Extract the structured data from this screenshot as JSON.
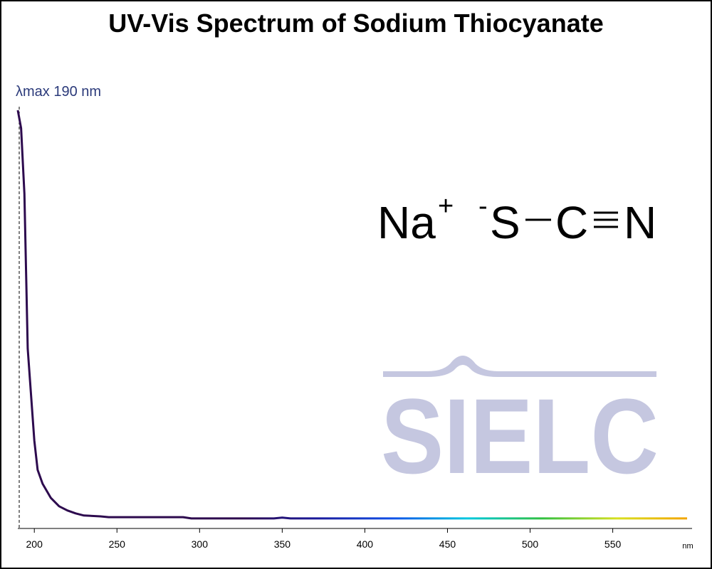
{
  "chart_data": {
    "type": "line",
    "title": "UV-Vis Spectrum of Sodium Thiocyanate",
    "x_label": "nm",
    "x": [
      190,
      192,
      194,
      196,
      200,
      202,
      205,
      210,
      215,
      220,
      225,
      230,
      240,
      245,
      290,
      295,
      345,
      350,
      355,
      400,
      450,
      500,
      550,
      595
    ],
    "series": [
      {
        "colors": [
          "#2d0a4e",
          "#2d0a4e",
          "#2d0a4e",
          "#2d0a4e",
          "#1a1a9c",
          "#1050e8",
          "#00c8e0",
          "#30c040",
          "#d8e020",
          "#f5a000"
        ],
        "values": [
          1.0,
          0.957,
          0.8,
          0.43,
          0.21,
          0.14,
          0.107,
          0.073,
          0.053,
          0.043,
          0.036,
          0.031,
          0.029,
          0.027,
          0.027,
          0.024,
          0.024,
          0.026,
          0.024,
          0.024,
          0.024,
          0.024,
          0.024,
          0.024
        ]
      }
    ],
    "xlim": [
      190,
      598
    ],
    "ylim": [
      0,
      1
    ],
    "xticks": [
      200,
      250,
      300,
      350,
      400,
      450,
      500,
      550
    ],
    "annotation": {
      "text": "λmax  190 nm",
      "x": 190
    },
    "structure": {
      "cation": "Na",
      "cation_charge": "+",
      "anion_charge": "-",
      "atoms": [
        "S",
        "C",
        "N"
      ]
    },
    "watermark": "SIELC"
  }
}
